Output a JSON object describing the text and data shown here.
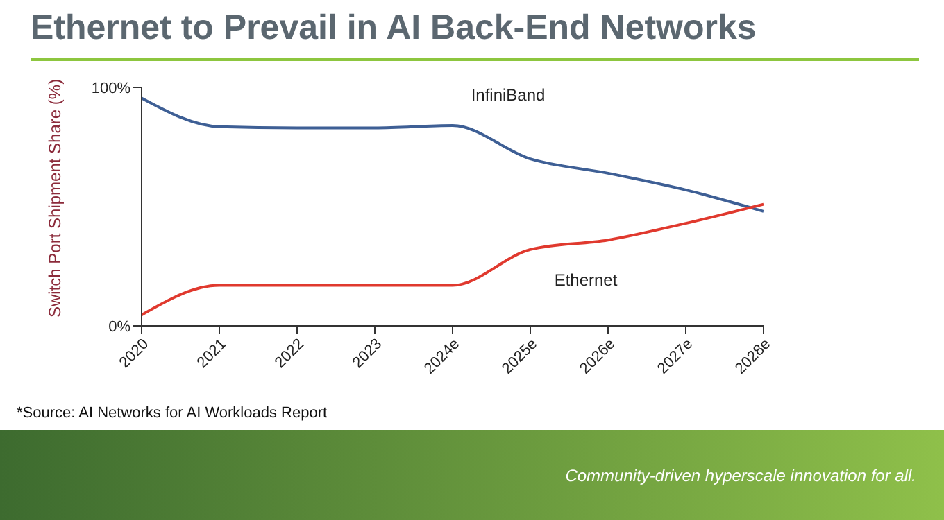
{
  "chart_data": {
    "type": "line",
    "title": "Ethernet to Prevail in AI Back-End Networks",
    "ylabel": "Switch Port Shipment Share (%)",
    "categories": [
      "2020",
      "2021",
      "2022",
      "2023",
      "2024e",
      "2025e",
      "2026e",
      "2027e",
      "2028e"
    ],
    "series": [
      {
        "name": "InfiniBand",
        "color": "#3e5f95",
        "values": [
          95.5,
          83.5,
          83,
          83,
          84,
          70,
          64,
          57,
          48
        ]
      },
      {
        "name": "Ethernet",
        "color": "#e0392e",
        "values": [
          4.6,
          17,
          17,
          17,
          17,
          32,
          36,
          43,
          51
        ]
      }
    ],
    "ylim": [
      0,
      100
    ],
    "yticks": [
      {
        "value": 0,
        "label": "0%"
      },
      {
        "value": 100,
        "label": "100%"
      }
    ],
    "marker": "none",
    "line_style": "solid",
    "grid": false,
    "annotations": [
      "*Source: AI Networks for AI Workloads Report",
      "Community-driven hyperscale innovation for all."
    ]
  }
}
